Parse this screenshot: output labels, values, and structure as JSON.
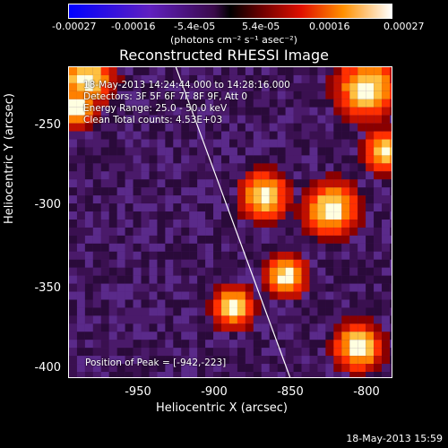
{
  "colorbar": {
    "ticks": [
      "-0.00027",
      "-0.00016",
      "-5.4e-05",
      "5.4e-05",
      "0.00016",
      "0.00027"
    ],
    "unit": "(photons cm⁻² s⁻¹ asec⁻²)"
  },
  "title": "Reconstructed RHESSI Image",
  "annotations": {
    "time": "18-May-2013 14:24:44.000 to 14:28:16.000",
    "detectors": "Detectors: 3F 5F 6F 7F 8F 9F, Att 0",
    "energy": "Energy Range: 25.0 - 50.0 keV",
    "clean": "Clean     Total counts: 4.53E+03",
    "peak": "Position of Peak = [-942,-223]"
  },
  "axes": {
    "xlabel": "Heliocentric X (arcsec)",
    "ylabel": "Heliocentric Y (arcsec)",
    "xticks": [
      "-950",
      "-900",
      "-850",
      "-800"
    ],
    "yticks": [
      "-250",
      "-300",
      "-350",
      "-400"
    ]
  },
  "timestamp": "18-May-2013 15:59",
  "colors": {
    "frame": "#ffffff",
    "background": "#000000"
  }
}
